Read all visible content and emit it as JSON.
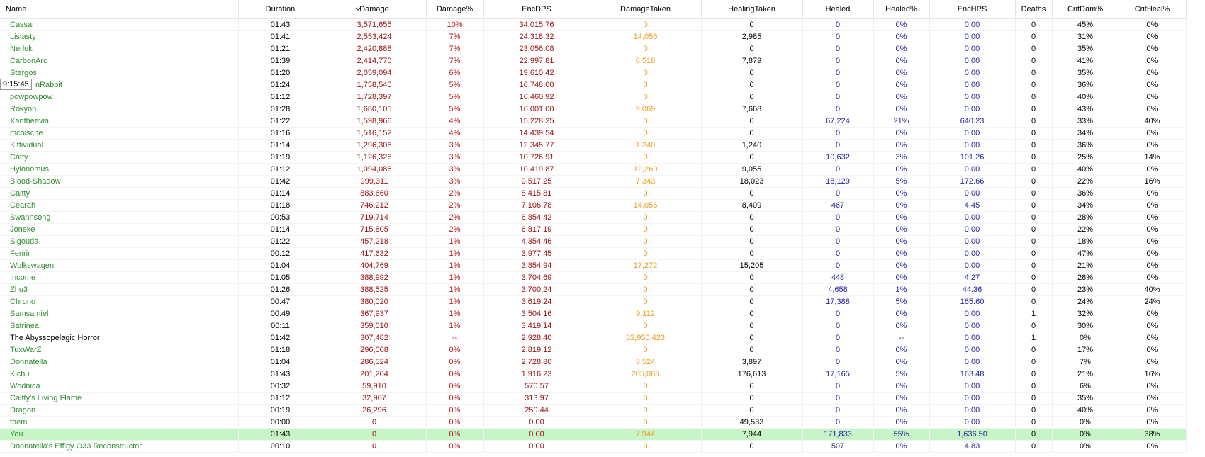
{
  "tooltip": "9:15:45",
  "table": {
    "columns": [
      "Name",
      "Duration",
      "Damage",
      "Damage%",
      "EncDPS",
      "DamageTaken",
      "HealingTaken",
      "Healed",
      "Healed%",
      "EncHPS",
      "Deaths",
      "CritDam%",
      "CritHeal%"
    ],
    "rows": [
      [
        "Cassar",
        "01:43",
        "3,571,655",
        "10%",
        "34,015.76",
        "0",
        "0",
        "0",
        "0%",
        "0.00",
        "0",
        "45%",
        "0%"
      ],
      [
        "Lisiasty",
        "01:41",
        "2,553,424",
        "7%",
        "24,318.32",
        "14,056",
        "2,985",
        "0",
        "0%",
        "0.00",
        "0",
        "31%",
        "0%"
      ],
      [
        "Nerluk",
        "01:21",
        "2,420,888",
        "7%",
        "23,056.08",
        "0",
        "0",
        "0",
        "0%",
        "0.00",
        "0",
        "35%",
        "0%"
      ],
      [
        "CarbonArc",
        "01:39",
        "2,414,770",
        "7%",
        "22,997.81",
        "6,518",
        "7,879",
        "0",
        "0%",
        "0.00",
        "0",
        "41%",
        "0%"
      ],
      [
        "Stergos",
        "01:20",
        "2,059,094",
        "6%",
        "19,610.42",
        "0",
        "0",
        "0",
        "0%",
        "0.00",
        "0",
        "35%",
        "0%"
      ],
      [
        "nRabbit",
        "01:24",
        "1,758,540",
        "5%",
        "16,748.00",
        "0",
        "0",
        "0",
        "0%",
        "0.00",
        "0",
        "36%",
        "0%"
      ],
      [
        "powpowpow",
        "01:12",
        "1,728,397",
        "5%",
        "16,460.92",
        "0",
        "0",
        "0",
        "0%",
        "0.00",
        "0",
        "40%",
        "0%"
      ],
      [
        "Rokynn",
        "01:28",
        "1,680,105",
        "5%",
        "16,001.00",
        "9,069",
        "7,668",
        "0",
        "0%",
        "0.00",
        "0",
        "43%",
        "0%"
      ],
      [
        "Xantheavia",
        "01:22",
        "1,598,966",
        "4%",
        "15,228.25",
        "0",
        "0",
        "67,224",
        "21%",
        "640.23",
        "0",
        "33%",
        "40%"
      ],
      [
        "mcolsche",
        "01:16",
        "1,516,152",
        "4%",
        "14,439.54",
        "0",
        "0",
        "0",
        "0%",
        "0.00",
        "0",
        "34%",
        "0%"
      ],
      [
        "Kittividual",
        "01:14",
        "1,296,306",
        "3%",
        "12,345.77",
        "1,240",
        "1,240",
        "0",
        "0%",
        "0.00",
        "0",
        "36%",
        "0%"
      ],
      [
        "Catty",
        "01:19",
        "1,126,326",
        "3%",
        "10,726.91",
        "0",
        "0",
        "10,632",
        "3%",
        "101.26",
        "0",
        "25%",
        "14%"
      ],
      [
        "Hylonomus",
        "01:12",
        "1,094,086",
        "3%",
        "10,419.87",
        "12,260",
        "9,055",
        "0",
        "0%",
        "0.00",
        "0",
        "40%",
        "0%"
      ],
      [
        "Blood-Shadow",
        "01:42",
        "999,311",
        "3%",
        "9,517.25",
        "7,343",
        "18,023",
        "18,129",
        "5%",
        "172.66",
        "0",
        "22%",
        "16%"
      ],
      [
        "Caitty",
        "01:14",
        "883,660",
        "2%",
        "8,415.81",
        "0",
        "0",
        "0",
        "0%",
        "0.00",
        "0",
        "36%",
        "0%"
      ],
      [
        "Cearah",
        "01:18",
        "746,212",
        "2%",
        "7,106.78",
        "14,056",
        "8,409",
        "467",
        "0%",
        "4.45",
        "0",
        "34%",
        "0%"
      ],
      [
        "Swannsong",
        "00:53",
        "719,714",
        "2%",
        "6,854.42",
        "0",
        "0",
        "0",
        "0%",
        "0.00",
        "0",
        "28%",
        "0%"
      ],
      [
        "Joneke",
        "01:14",
        "715,805",
        "2%",
        "6,817.19",
        "0",
        "0",
        "0",
        "0%",
        "0.00",
        "0",
        "22%",
        "0%"
      ],
      [
        "Sigouda",
        "01:22",
        "457,218",
        "1%",
        "4,354.46",
        "0",
        "0",
        "0",
        "0%",
        "0.00",
        "0",
        "18%",
        "0%"
      ],
      [
        "Fenrir",
        "00:12",
        "417,632",
        "1%",
        "3,977.45",
        "0",
        "0",
        "0",
        "0%",
        "0.00",
        "0",
        "47%",
        "0%"
      ],
      [
        "Wolkswagen",
        "01:04",
        "404,769",
        "1%",
        "3,854.94",
        "17,272",
        "15,205",
        "0",
        "0%",
        "0.00",
        "0",
        "21%",
        "0%"
      ],
      [
        "Income",
        "01:05",
        "388,992",
        "1%",
        "3,704.69",
        "0",
        "0",
        "448",
        "0%",
        "4.27",
        "0",
        "28%",
        "0%"
      ],
      [
        "Zhu3",
        "01:26",
        "388,525",
        "1%",
        "3,700.24",
        "0",
        "0",
        "4,658",
        "1%",
        "44.36",
        "0",
        "23%",
        "40%"
      ],
      [
        "Chrono",
        "00:47",
        "380,020",
        "1%",
        "3,619.24",
        "0",
        "0",
        "17,388",
        "5%",
        "165.60",
        "0",
        "24%",
        "24%"
      ],
      [
        "Samsamiel",
        "00:49",
        "367,937",
        "1%",
        "3,504.16",
        "9,112",
        "0",
        "0",
        "0%",
        "0.00",
        "1",
        "32%",
        "0%"
      ],
      [
        "Satrinea",
        "00:11",
        "359,010",
        "1%",
        "3,419.14",
        "0",
        "0",
        "0",
        "0%",
        "0.00",
        "0",
        "30%",
        "0%"
      ],
      [
        "The Abyssopelagic Horror",
        "01:42",
        "307,482",
        "--",
        "2,928.40",
        "32,950,423",
        "0",
        "0",
        "--",
        "0.00",
        "1",
        "0%",
        "0%"
      ],
      [
        "TuxWarZ",
        "01:18",
        "296,008",
        "0%",
        "2,819.12",
        "0",
        "0",
        "0",
        "0%",
        "0.00",
        "0",
        "17%",
        "0%"
      ],
      [
        "Donnatella",
        "01:04",
        "286,524",
        "0%",
        "2,728.80",
        "3,524",
        "3,897",
        "0",
        "0%",
        "0.00",
        "0",
        "7%",
        "0%"
      ],
      [
        "Kichu",
        "01:43",
        "201,204",
        "0%",
        "1,916.23",
        "205,088",
        "176,613",
        "17,165",
        "5%",
        "163.48",
        "0",
        "21%",
        "16%"
      ],
      [
        "Wodnica",
        "00:32",
        "59,910",
        "0%",
        "570.57",
        "0",
        "0",
        "0",
        "0%",
        "0.00",
        "0",
        "6%",
        "0%"
      ],
      [
        "Caitty's Living Flame",
        "01:12",
        "32,967",
        "0%",
        "313.97",
        "0",
        "0",
        "0",
        "0%",
        "0.00",
        "0",
        "35%",
        "0%"
      ],
      [
        "Dragon",
        "00:19",
        "26,296",
        "0%",
        "250.44",
        "0",
        "0",
        "0",
        "0%",
        "0.00",
        "0",
        "40%",
        "0%"
      ],
      [
        "them",
        "00:00",
        "0",
        "0%",
        "0.00",
        "0",
        "49,533",
        "0",
        "0%",
        "0.00",
        "0",
        "0%",
        "0%"
      ],
      [
        "You",
        "01:43",
        "0",
        "0%",
        "0.00",
        "7,944",
        "7,944",
        "171,833",
        "55%",
        "1,636.50",
        "0",
        "0%",
        "38%"
      ],
      [
        "Donnatella's Effigy O33 Reconstructor",
        "00:10",
        "0",
        "0%",
        "0.00",
        "0",
        "0",
        "507",
        "0%",
        "4.83",
        "0",
        "0%",
        "0%"
      ]
    ]
  }
}
